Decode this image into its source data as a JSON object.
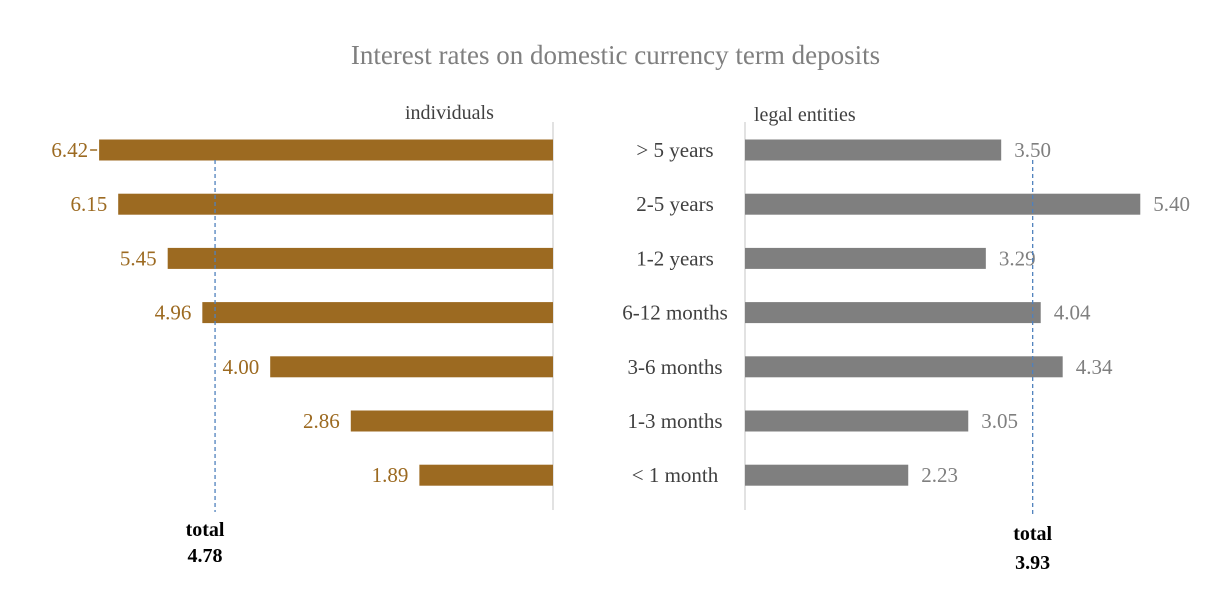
{
  "chart_data": {
    "type": "bar",
    "title": "Interest rates on domestic currency term deposits",
    "categories": [
      "> 5 years",
      "2-5 years",
      "1-2 years",
      "6-12 months",
      "3-6 months",
      "1-3 months",
      "< 1 month"
    ],
    "series": [
      {
        "name": "individuals",
        "values": [
          6.42,
          6.15,
          5.45,
          4.96,
          4.0,
          2.86,
          1.89
        ],
        "value_labels": [
          "6.42",
          "6.15",
          "5.45",
          "4.96",
          "4.00",
          "2.86",
          "1.89"
        ],
        "color": "#9c6a21",
        "total_label": "total",
        "total_value": 4.78,
        "total_text": "4.78"
      },
      {
        "name": "legal entities",
        "values": [
          3.5,
          5.4,
          3.29,
          4.04,
          4.34,
          3.05,
          2.23
        ],
        "value_labels": [
          "3.50",
          "5.40",
          "3.29",
          "4.04",
          "4.34",
          "3.05",
          "2.23"
        ],
        "color": "#7f7f7f",
        "total_label": "total",
        "total_value": 3.93,
        "total_text": "3.93"
      }
    ],
    "colors": {
      "individuals_label": "#9c6a21",
      "legal_label": "#7f7f7f",
      "title": "#7f7f7f",
      "category_text": "#404040",
      "reference_line": "#4f81bd",
      "axis": "#d9d9d9"
    },
    "orientation": "horizontal, mirrored",
    "grid": false
  }
}
